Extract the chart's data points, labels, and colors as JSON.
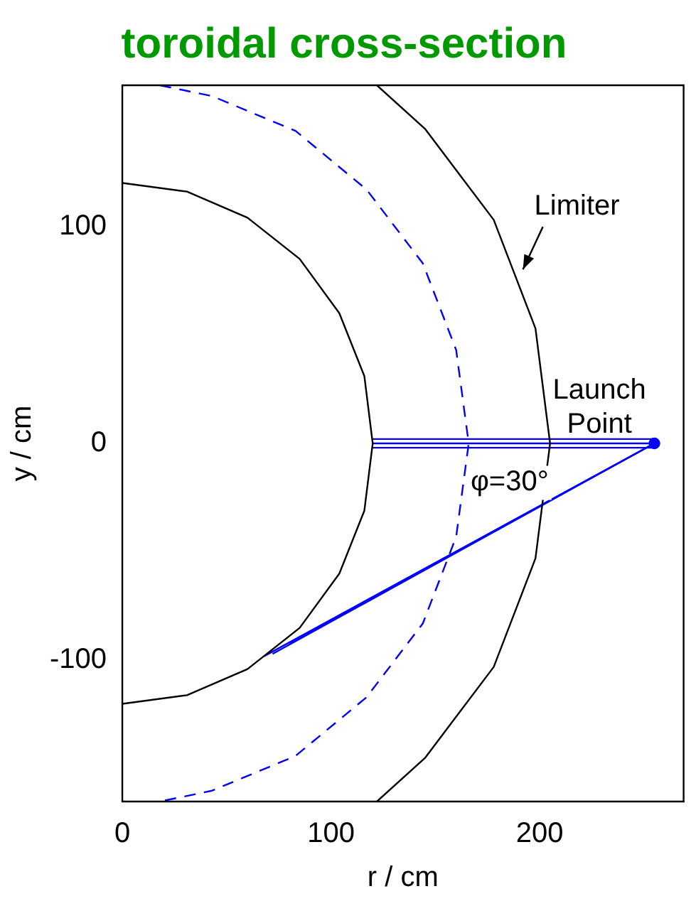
{
  "chart_data": {
    "type": "line",
    "title": "toroidal cross-section",
    "xlabel": "r / cm",
    "ylabel": "y / cm",
    "xlim": [
      0,
      269
    ],
    "ylim": [
      -165,
      165
    ],
    "xticks": [
      0,
      100,
      200
    ],
    "yticks": [
      -100,
      0,
      100
    ],
    "grid": false,
    "legend": false,
    "marker": "none",
    "series": [
      {
        "color": "#000000",
        "x": [
          0,
          31,
          60,
          85,
          104,
          116,
          120,
          116,
          104,
          85,
          60,
          31,
          0
        ],
        "values": [
          120,
          116,
          104,
          85,
          60,
          31,
          0,
          -31,
          -60,
          -85,
          -104,
          -116,
          -120
        ]
      },
      {
        "color": "#000000",
        "x": [
          122,
          145,
          178,
          198,
          205,
          198,
          178,
          145,
          122
        ],
        "values": [
          165,
          145,
          103,
          53,
          0,
          -53,
          -103,
          -145,
          -165
        ]
      },
      {
        "color": "#0000ff",
        "line_style": "dashed",
        "x": [
          18,
          43,
          83,
          117,
          144,
          160,
          166,
          160,
          144,
          117,
          83,
          43,
          18
        ],
        "values": [
          165,
          160,
          144,
          117,
          83,
          43,
          0,
          -43,
          -83,
          -117,
          -144,
          -160,
          -165
        ]
      },
      {
        "color": "#0000ff",
        "x": [
          120,
          255
        ],
        "values": [
          2,
          2
        ]
      },
      {
        "color": "#0000ff",
        "x": [
          120,
          255
        ],
        "values": [
          0,
          0
        ]
      },
      {
        "color": "#0000ff",
        "x": [
          120,
          255
        ],
        "values": [
          -2,
          -2
        ]
      },
      {
        "color": "#0000ff",
        "x": [
          68,
          255
        ],
        "values": [
          -98,
          0
        ]
      },
      {
        "color": "#0000ff",
        "x": [
          72,
          255
        ],
        "values": [
          -97,
          0
        ]
      },
      {
        "color": "#0000ff",
        "x": [
          80,
          255
        ],
        "values": [
          -92,
          0
        ]
      },
      {
        "type": "scatter",
        "marker": "circle",
        "color": "#0000ff",
        "x": [
          255
        ],
        "values": [
          0
        ]
      }
    ],
    "annotations": [
      "Limiter",
      "Launch Point",
      "φ=30°"
    ]
  }
}
